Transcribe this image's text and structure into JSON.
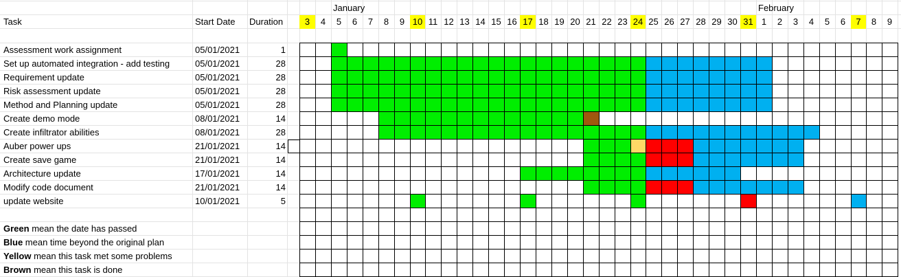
{
  "headers": {
    "task": "Task",
    "start": "Start Date",
    "duration": "Duration"
  },
  "months": [
    {
      "label": "January",
      "day_index": 2
    },
    {
      "label": "February",
      "day_index": 29
    }
  ],
  "days": [
    "3",
    "4",
    "5",
    "6",
    "7",
    "8",
    "9",
    "10",
    "11",
    "12",
    "13",
    "14",
    "15",
    "16",
    "17",
    "18",
    "19",
    "20",
    "21",
    "22",
    "23",
    "24",
    "25",
    "26",
    "27",
    "28",
    "29",
    "30",
    "31",
    "1",
    "2",
    "3",
    "4",
    "5",
    "6",
    "7",
    "8",
    "9"
  ],
  "highlighted_days": [
    0,
    7,
    14,
    21,
    28,
    35
  ],
  "colors": {
    "green": "#00ee00",
    "blue": "#00b0f0",
    "yellow": "#ffd966",
    "brown": "#a0580e",
    "red": "#ff0000",
    "day_highlight": "#ffff00"
  },
  "tasks": [
    {
      "name": "Assessment work assignment",
      "start": "05/01/2021",
      "duration": "1",
      "segments": [
        [
          "green",
          2,
          2
        ]
      ]
    },
    {
      "name": "Set up automated integration - add testing",
      "start": "05/01/2021",
      "duration": "28",
      "segments": [
        [
          "green",
          2,
          21
        ],
        [
          "blue",
          22,
          29
        ]
      ]
    },
    {
      "name": "Requirement update",
      "start": "05/01/2021",
      "duration": "28",
      "segments": [
        [
          "green",
          2,
          21
        ],
        [
          "blue",
          22,
          29
        ]
      ]
    },
    {
      "name": "Risk assessment update",
      "start": "05/01/2021",
      "duration": "28",
      "segments": [
        [
          "green",
          2,
          21
        ],
        [
          "blue",
          22,
          29
        ]
      ]
    },
    {
      "name": "Method and Planning update",
      "start": "05/01/2021",
      "duration": "28",
      "segments": [
        [
          "green",
          2,
          21
        ],
        [
          "blue",
          22,
          29
        ]
      ]
    },
    {
      "name": "Create demo mode",
      "start": "08/01/2021",
      "duration": "14",
      "segments": [
        [
          "green",
          5,
          17
        ],
        [
          "brown",
          18,
          18
        ]
      ]
    },
    {
      "name": "Create infiltrator abilities",
      "start": "08/01/2021",
      "duration": "28",
      "segments": [
        [
          "green",
          5,
          21
        ],
        [
          "blue",
          22,
          32
        ]
      ]
    },
    {
      "name": "Auber power ups",
      "start": "21/01/2021",
      "duration": "14",
      "segments": [
        [
          "green",
          18,
          20
        ],
        [
          "yellow",
          21,
          21
        ],
        [
          "red",
          22,
          24
        ],
        [
          "blue",
          25,
          31
        ]
      ]
    },
    {
      "name": "Create save game",
      "start": "21/01/2021",
      "duration": "14",
      "segments": [
        [
          "green",
          18,
          21
        ],
        [
          "red",
          22,
          24
        ],
        [
          "blue",
          25,
          31
        ]
      ]
    },
    {
      "name": "Architecture update",
      "start": "17/01/2021",
      "duration": "14",
      "segments": [
        [
          "green",
          14,
          21
        ],
        [
          "blue",
          22,
          27
        ]
      ]
    },
    {
      "name": "Modify code document",
      "start": "21/01/2021",
      "duration": "14",
      "segments": [
        [
          "green",
          18,
          21
        ],
        [
          "red",
          22,
          24
        ],
        [
          "blue",
          25,
          31
        ]
      ]
    },
    {
      "name": "update website",
      "start": "10/01/2021",
      "duration": "5",
      "segments": [
        [
          "green",
          7,
          7
        ],
        [
          "green",
          14,
          14
        ],
        [
          "green",
          21,
          21
        ],
        [
          "red",
          28,
          28
        ],
        [
          "blue",
          35,
          35
        ]
      ]
    }
  ],
  "legend": [
    {
      "key": "Green",
      "text": " mean the date has passed"
    },
    {
      "key": "Blue",
      "text": " mean time beyond the original plan"
    },
    {
      "key": "Yellow",
      "text": " mean this task met some problems"
    },
    {
      "key": "Brown",
      "text": " mean this task is done"
    }
  ]
}
